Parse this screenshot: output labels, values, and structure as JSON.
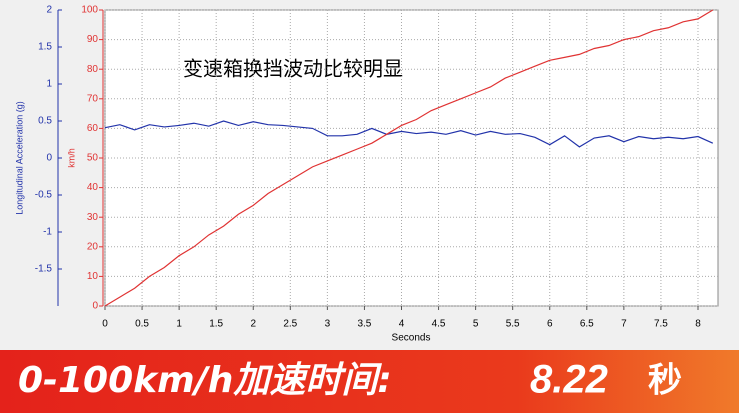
{
  "chart_data": {
    "type": "line",
    "ylabel": "Longitudinal Acceleration (g)",
    "y2label": "km/h",
    "xlabel": "Seconds",
    "annotation": "变速箱换挡波动比较明显",
    "banner": {
      "label": "0-100km/h加速时间:",
      "value": "8.22",
      "unit": "秒"
    },
    "x": [
      0,
      0.2,
      0.4,
      0.6,
      0.8,
      1.0,
      1.2,
      1.4,
      1.6,
      1.8,
      2.0,
      2.2,
      2.4,
      2.6,
      2.8,
      3.0,
      3.2,
      3.4,
      3.6,
      3.8,
      4.0,
      4.2,
      4.4,
      4.6,
      4.8,
      5.0,
      5.2,
      5.4,
      5.6,
      5.8,
      6.0,
      6.2,
      6.4,
      6.6,
      6.8,
      7.0,
      7.2,
      7.4,
      7.6,
      7.8,
      8.0,
      8.2
    ],
    "series": [
      {
        "color": "#2233aa",
        "values": [
          0.41,
          0.45,
          0.38,
          0.45,
          0.42,
          0.44,
          0.47,
          0.43,
          0.5,
          0.44,
          0.49,
          0.45,
          0.44,
          0.42,
          0.4,
          0.3,
          0.3,
          0.32,
          0.4,
          0.32,
          0.36,
          0.33,
          0.35,
          0.32,
          0.37,
          0.31,
          0.36,
          0.32,
          0.33,
          0.28,
          0.18,
          0.3,
          0.15,
          0.27,
          0.3,
          0.22,
          0.29,
          0.26,
          0.28,
          0.26,
          0.29,
          0.2
        ]
      },
      {
        "color": "#e03333",
        "axis": "y2",
        "values": [
          0,
          3,
          6,
          10,
          13,
          17,
          20,
          24,
          27,
          31,
          34,
          38,
          41,
          44,
          47,
          49,
          51,
          53,
          55,
          58,
          61,
          63,
          66,
          68,
          70,
          72,
          74,
          77,
          79,
          81,
          83,
          84,
          85,
          87,
          88,
          90,
          91,
          93,
          94,
          96,
          97,
          100
        ]
      }
    ],
    "xlim": [
      0,
      8.27
    ],
    "xticks": [
      0,
      0.5,
      1,
      1.5,
      2,
      2.5,
      3,
      3.5,
      4,
      4.5,
      5,
      5.5,
      6,
      6.5,
      7,
      7.5,
      8
    ],
    "ylim": [
      -2,
      2
    ],
    "yticks": [
      2,
      1.5,
      1,
      0.5,
      0,
      -0.5,
      -1,
      -1.5
    ],
    "y2lim": [
      0,
      100
    ],
    "y2ticks": [
      0,
      10,
      20,
      30,
      40,
      50,
      60,
      70,
      80,
      90,
      100
    ],
    "grid": true,
    "ycolor": "#2233aa",
    "y2color": "#e03333"
  }
}
